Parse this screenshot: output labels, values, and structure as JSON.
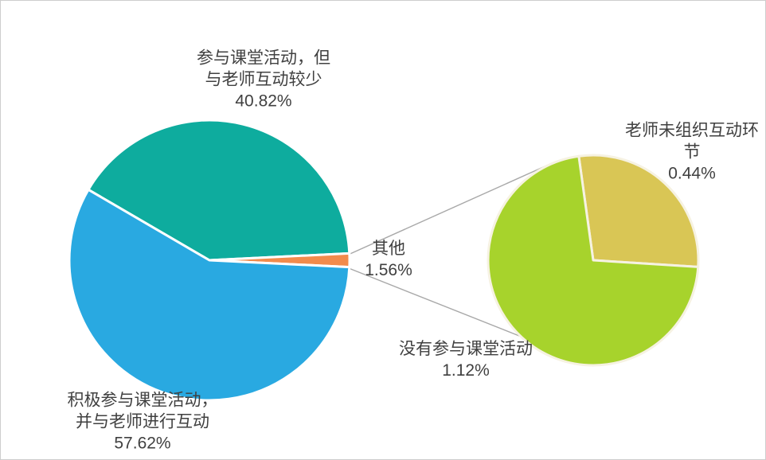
{
  "chart_data": {
    "type": "pie",
    "variant": "pie-of-pie",
    "title": "",
    "legend": "none",
    "background_color": "#ffffff",
    "text_color": "#404040",
    "connector_line_color": "#a8a8a8",
    "main_pie": {
      "total": 100,
      "slices": [
        {
          "name": "participate-but-less-interaction",
          "label_lines": [
            "参与课堂活动，但",
            "与老师互动较少"
          ],
          "value": 40.82,
          "value_label": "40.82%",
          "color": "#0EAC9E"
        },
        {
          "name": "other",
          "label_lines": [
            "其他"
          ],
          "value": 1.56,
          "value_label": "1.56%",
          "color": "#F28B4C"
        },
        {
          "name": "actively-participate-and-interact",
          "label_lines": [
            "积极参与课堂活动，",
            "并与老师进行互动"
          ],
          "value": 57.62,
          "value_label": "57.62%",
          "color": "#29A9E1"
        }
      ],
      "slice_border_color": "#ffffff"
    },
    "secondary_pie": {
      "total": 1.56,
      "slices": [
        {
          "name": "teacher-did-not-organize-interaction",
          "label_lines": [
            "老师未组织互动环",
            "节"
          ],
          "value": 0.44,
          "value_label": "0.44%",
          "color": "#D9C655"
        },
        {
          "name": "did-not-participate",
          "label_lines": [
            "没有参与课堂活动"
          ],
          "value": 1.12,
          "value_label": "1.12%",
          "color": "#A7D32C"
        }
      ],
      "slice_border_color": "#F6F2E2"
    }
  }
}
